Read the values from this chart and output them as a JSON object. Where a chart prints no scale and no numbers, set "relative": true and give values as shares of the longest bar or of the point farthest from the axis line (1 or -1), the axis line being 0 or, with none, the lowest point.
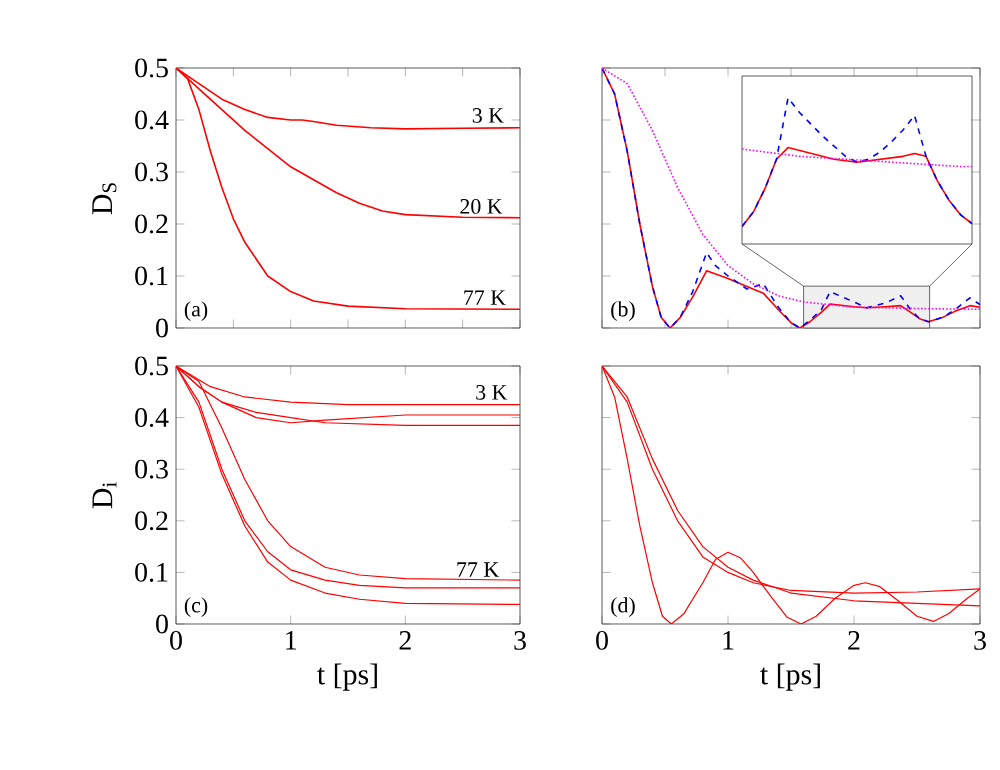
{
  "chart_data": [
    {
      "type": "line",
      "ylabel": "D$_{S}$",
      "xlim": [
        0,
        3
      ],
      "ylim": [
        0,
        0.5
      ],
      "xticks": [
        0,
        0.5,
        1,
        1.5,
        2,
        2.5,
        3
      ],
      "yticks": [
        0,
        0.1,
        0.2,
        0.3,
        0.4,
        0.5
      ],
      "tick_labels": "y",
      "annotations": [
        "(a)",
        {
          "text": "3 K",
          "x": 2.72,
          "y": 0.39
        },
        {
          "text": "20 K",
          "x": 2.66,
          "y": 0.215
        },
        {
          "text": "77 K",
          "x": 2.69,
          "y": 0.04
        }
      ],
      "series": [
        {
          "color": "#ff0000",
          "line_style": "solid",
          "x": [
            0,
            0.2,
            0.4,
            0.6,
            0.8,
            1.0,
            1.1,
            1.2,
            1.4,
            1.7,
            2,
            2.5,
            3
          ],
          "values": [
            0.5,
            0.47,
            0.44,
            0.42,
            0.405,
            0.4,
            0.4,
            0.397,
            0.39,
            0.385,
            0.383,
            0.384,
            0.385
          ]
        },
        {
          "color": "#ff0000",
          "line_style": "solid",
          "x": [
            0,
            0.2,
            0.4,
            0.6,
            0.8,
            1.0,
            1.2,
            1.4,
            1.6,
            1.8,
            2,
            2.5,
            3
          ],
          "values": [
            0.5,
            0.46,
            0.42,
            0.38,
            0.345,
            0.31,
            0.285,
            0.26,
            0.24,
            0.225,
            0.218,
            0.213,
            0.212
          ]
        },
        {
          "color": "#ff0000",
          "line_style": "solid",
          "x": [
            0,
            0.1,
            0.2,
            0.3,
            0.4,
            0.5,
            0.6,
            0.8,
            1.0,
            1.2,
            1.5,
            2,
            3
          ],
          "values": [
            0.5,
            0.48,
            0.42,
            0.34,
            0.27,
            0.21,
            0.165,
            0.1,
            0.07,
            0.052,
            0.042,
            0.037,
            0.036
          ]
        }
      ]
    },
    {
      "type": "line",
      "xlim": [
        0,
        3
      ],
      "ylim": [
        0,
        0.5
      ],
      "xticks": [
        0,
        0.5,
        1,
        1.5,
        2,
        2.5,
        3
      ],
      "yticks": [
        0,
        0.1,
        0.2,
        0.3,
        0.4,
        0.5
      ],
      "tick_labels": false,
      "annotations": [
        "(b)"
      ],
      "bands": [
        {
          "axis": "x",
          "from": 1.6,
          "to": 2.6
        }
      ],
      "series": [
        {
          "color": "#ff0000",
          "line_style": "solid",
          "x": [
            0,
            0.1,
            0.2,
            0.3,
            0.4,
            0.47,
            0.54,
            0.62,
            0.72,
            0.83,
            1.0,
            1.15,
            1.28,
            1.4,
            1.5,
            1.57,
            1.65,
            1.74,
            1.81,
            2.0,
            2.1,
            2.25,
            2.37,
            2.45,
            2.52,
            2.59,
            2.7,
            2.8,
            2.92,
            3.0
          ],
          "values": [
            0.5,
            0.45,
            0.34,
            0.2,
            0.08,
            0.02,
            0,
            0.02,
            0.06,
            0.11,
            0.095,
            0.08,
            0.067,
            0.035,
            0.01,
            0,
            0.012,
            0.03,
            0.046,
            0.041,
            0.039,
            0.041,
            0.043,
            0.03,
            0.018,
            0.012,
            0.02,
            0.032,
            0.043,
            0.04
          ]
        },
        {
          "color": "#0000ff",
          "line_style": "dashed",
          "x": [
            0,
            0.1,
            0.2,
            0.3,
            0.4,
            0.47,
            0.54,
            0.62,
            0.72,
            0.83,
            0.9,
            1.0,
            1.15,
            1.28,
            1.4,
            1.5,
            1.57,
            1.65,
            1.74,
            1.81,
            2.0,
            2.1,
            2.25,
            2.37,
            2.45,
            2.52,
            2.59,
            2.7,
            2.8,
            2.92,
            3.0
          ],
          "values": [
            0.5,
            0.45,
            0.34,
            0.2,
            0.08,
            0.02,
            0,
            0.02,
            0.07,
            0.145,
            0.12,
            0.1,
            0.075,
            0.085,
            0.04,
            0.01,
            0,
            0.015,
            0.035,
            0.07,
            0.05,
            0.039,
            0.048,
            0.062,
            0.035,
            0.018,
            0.012,
            0.02,
            0.035,
            0.058,
            0.045
          ]
        },
        {
          "color": "#ff00ff",
          "line_style": "dotted",
          "x": [
            0,
            0.2,
            0.4,
            0.6,
            0.8,
            1.0,
            1.2,
            1.4,
            1.6,
            2.0,
            2.6,
            3
          ],
          "values": [
            0.5,
            0.47,
            0.38,
            0.27,
            0.18,
            0.12,
            0.085,
            0.062,
            0.05,
            0.04,
            0.037,
            0.036
          ]
        }
      ]
    },
    {
      "type": "line",
      "relative": true,
      "tick_labels": false,
      "categories": [
        null,
        null,
        null,
        null,
        null,
        null,
        null,
        null,
        null,
        null,
        null,
        null,
        null,
        null,
        null,
        null,
        null,
        null,
        null,
        null,
        null
      ],
      "series": [
        {
          "color": "#ff0000",
          "line_style": "solid",
          "values": [
            0.12,
            0.22,
            0.38,
            0.58,
            0.66,
            0.64,
            0.62,
            0.6,
            0.58,
            0.57,
            0.56,
            0.57,
            0.58,
            0.59,
            0.6,
            0.62,
            0.6,
            0.43,
            0.3,
            0.2,
            0.14
          ]
        },
        {
          "color": "#0000ff",
          "line_style": "dashed",
          "values": [
            0.12,
            0.22,
            0.38,
            0.58,
            1.0,
            0.9,
            0.82,
            0.74,
            0.67,
            0.6,
            0.56,
            0.58,
            0.63,
            0.7,
            0.78,
            0.88,
            0.6,
            0.43,
            0.3,
            0.2,
            0.14
          ]
        },
        {
          "color": "#ff00ff",
          "line_style": "dotted",
          "values": [
            0.65,
            0.64,
            0.63,
            0.62,
            0.61,
            0.6,
            0.595,
            0.59,
            0.585,
            0.58,
            0.575,
            0.57,
            0.565,
            0.56,
            0.555,
            0.55,
            0.545,
            0.54,
            0.535,
            0.53,
            0.53
          ]
        }
      ]
    },
    {
      "type": "line",
      "ylabel": "D$_{i}$",
      "xlabel": "t [ps]",
      "xlim": [
        0,
        3
      ],
      "ylim": [
        0,
        0.5
      ],
      "xticks": [
        0,
        1,
        2,
        3
      ],
      "yticks": [
        0,
        0.1,
        0.2,
        0.3,
        0.4,
        0.5
      ],
      "annotations": [
        "(c)",
        {
          "text": "3 K",
          "x": 2.75,
          "y": 0.43
        },
        {
          "text": "77 K",
          "x": 2.63,
          "y": 0.087
        }
      ],
      "series": [
        {
          "color": "#ff0000",
          "line_style": "solid",
          "x": [
            0,
            0.3,
            0.6,
            1.0,
            1.5,
            3
          ],
          "values": [
            0.5,
            0.46,
            0.44,
            0.43,
            0.425,
            0.425
          ]
        },
        {
          "color": "#ff0000",
          "line_style": "solid",
          "x": [
            0,
            0.2,
            0.4,
            0.7,
            1.0,
            1.3,
            2,
            3
          ],
          "values": [
            0.5,
            0.46,
            0.43,
            0.4,
            0.39,
            0.395,
            0.405,
            0.405
          ]
        },
        {
          "color": "#ff0000",
          "line_style": "solid",
          "x": [
            0,
            0.2,
            0.4,
            0.7,
            1.0,
            1.3,
            2,
            3
          ],
          "values": [
            0.5,
            0.46,
            0.43,
            0.41,
            0.4,
            0.39,
            0.385,
            0.385
          ]
        },
        {
          "color": "#ff0000",
          "line_style": "solid",
          "x": [
            0,
            0.2,
            0.4,
            0.6,
            0.8,
            1.0,
            1.3,
            1.6,
            2,
            3
          ],
          "values": [
            0.5,
            0.47,
            0.38,
            0.28,
            0.2,
            0.15,
            0.11,
            0.095,
            0.088,
            0.085
          ]
        },
        {
          "color": "#ff0000",
          "line_style": "solid",
          "x": [
            0,
            0.2,
            0.4,
            0.6,
            0.8,
            1.0,
            1.3,
            1.6,
            2,
            3
          ],
          "values": [
            0.5,
            0.43,
            0.3,
            0.2,
            0.14,
            0.105,
            0.085,
            0.075,
            0.07,
            0.07
          ]
        },
        {
          "color": "#ff0000",
          "line_style": "solid",
          "x": [
            0,
            0.2,
            0.4,
            0.6,
            0.8,
            1.0,
            1.3,
            1.6,
            2,
            3
          ],
          "values": [
            0.5,
            0.42,
            0.29,
            0.19,
            0.12,
            0.085,
            0.06,
            0.048,
            0.04,
            0.038
          ]
        }
      ]
    },
    {
      "type": "line",
      "xlabel": "t [ps]",
      "xlim": [
        0,
        3
      ],
      "ylim": [
        0,
        0.5
      ],
      "xticks": [
        0,
        1,
        2,
        3
      ],
      "yticks": [
        0,
        0.1,
        0.2,
        0.3,
        0.4,
        0.5
      ],
      "tick_labels": "x",
      "annotations": [
        "(d)"
      ],
      "series": [
        {
          "color": "#ff0000",
          "line_style": "solid",
          "x": [
            0,
            0.1,
            0.2,
            0.3,
            0.4,
            0.48,
            0.55,
            0.65,
            0.8,
            0.9,
            1.0,
            1.1,
            1.2,
            1.35,
            1.47,
            1.58,
            1.7,
            1.85,
            2.0,
            2.09,
            2.2,
            2.35,
            2.5,
            2.63,
            2.75,
            2.9,
            3.0
          ],
          "values": [
            0.5,
            0.44,
            0.32,
            0.19,
            0.08,
            0.015,
            0,
            0.02,
            0.08,
            0.125,
            0.139,
            0.128,
            0.1,
            0.05,
            0.013,
            0,
            0.015,
            0.05,
            0.075,
            0.08,
            0.073,
            0.045,
            0.015,
            0.005,
            0.02,
            0.05,
            0.068
          ]
        },
        {
          "color": "#ff0000",
          "line_style": "solid",
          "x": [
            0,
            0.2,
            0.4,
            0.6,
            0.8,
            1.0,
            1.2,
            1.5,
            2,
            2.5,
            3
          ],
          "values": [
            0.5,
            0.43,
            0.3,
            0.2,
            0.13,
            0.1,
            0.08,
            0.065,
            0.06,
            0.062,
            0.068
          ]
        },
        {
          "color": "#ff0000",
          "line_style": "solid",
          "x": [
            0,
            0.2,
            0.4,
            0.6,
            0.8,
            1.0,
            1.2,
            1.5,
            2,
            2.5,
            3
          ],
          "values": [
            0.5,
            0.44,
            0.32,
            0.22,
            0.15,
            0.11,
            0.085,
            0.06,
            0.045,
            0.04,
            0.035
          ]
        }
      ]
    }
  ]
}
